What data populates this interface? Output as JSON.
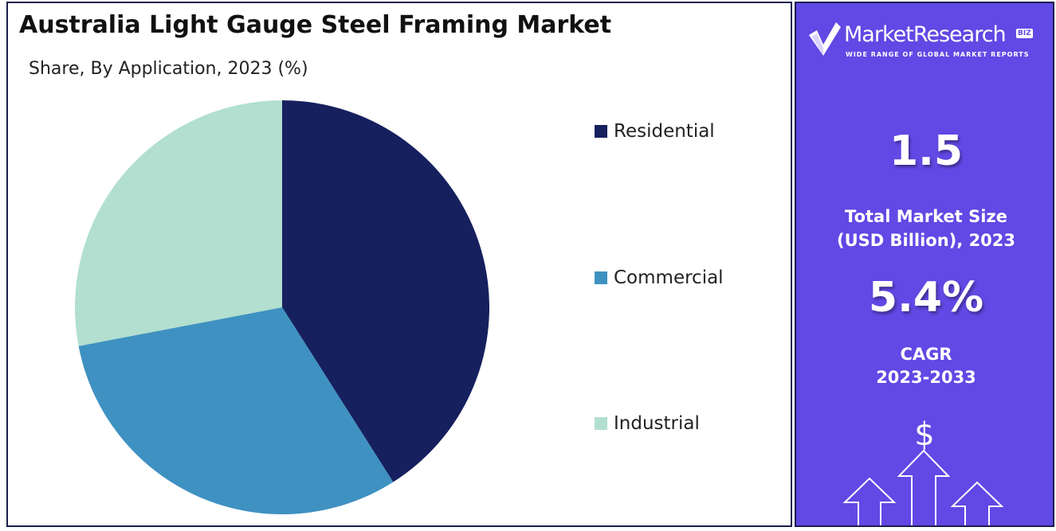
{
  "chart_data": {
    "type": "pie",
    "title": "Australia Light Gauge Steel Framing Market",
    "subtitle": "Share, By Application, 2023 (%)",
    "categories": [
      "Residential",
      "Commercial",
      "Industrial"
    ],
    "values": [
      41,
      31,
      28
    ],
    "colors": [
      "#16205e",
      "#3f91c1",
      "#b2dfcf"
    ],
    "legend_position": "right"
  },
  "sidebar": {
    "brand_name": "MarketResearch",
    "brand_badge": "BIZ",
    "brand_tagline": "WIDE RANGE OF GLOBAL MARKET REPORTS",
    "market_size_value": "1.5",
    "market_size_label_line1": "Total Market Size",
    "market_size_label_line2": "(USD Billion), 2023",
    "cagr_value": "5.4%",
    "cagr_label_line1": "CAGR",
    "cagr_label_line2": "2023-2033",
    "dollar_sign": "$",
    "logo_icon": "check-logo-icon",
    "decor_icon": "growth-arrows-icon",
    "background_color": "#6248e4"
  }
}
